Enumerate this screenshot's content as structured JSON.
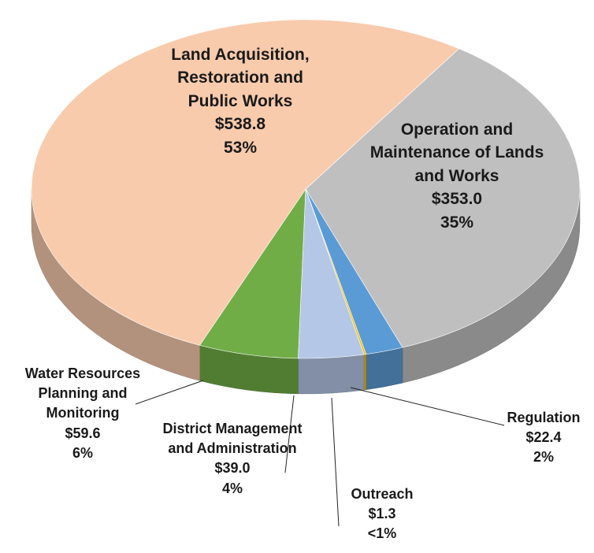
{
  "chart_data": {
    "type": "pie",
    "categories": [
      "Operation and Maintenance of Lands and Works",
      "Regulation",
      "Outreach",
      "District Management and Administration",
      "Water Resources Planning and Monitoring",
      "Land Acquisition, Restoration and Public Works"
    ],
    "values": [
      353.0,
      22.4,
      1.3,
      39.0,
      59.6,
      538.8
    ],
    "value_labels": [
      "$353.0",
      "$22.4",
      "$1.3",
      "$39.0",
      "$59.6",
      "$538.8"
    ],
    "percent_labels": [
      "35%",
      "2%",
      "<1%",
      "4%",
      "6%",
      "53%"
    ],
    "colors": [
      "#bfbfbf",
      "#5b9bd5",
      "#ffc000",
      "#b4c7e7",
      "#70ad47",
      "#f8cbad"
    ]
  }
}
